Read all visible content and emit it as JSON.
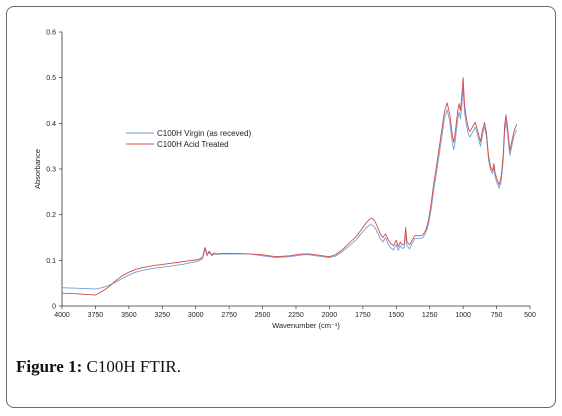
{
  "caption": {
    "label": "Figure 1:",
    "text": "C100H FTIR."
  },
  "colors": {
    "virgin": "#6fa0d8",
    "acid": "#d64b4b",
    "axis": "#333333"
  },
  "chart_data": {
    "type": "line",
    "xlabel": "Wavenumber",
    "xlabel_unit": "(cm⁻¹)",
    "ylabel": "Absorbance",
    "xlim": [
      4000,
      500
    ],
    "ylim": [
      0,
      0.6
    ],
    "x_ticks": [
      "4000",
      "3750",
      "3500",
      "3250",
      "3000",
      "2750",
      "2500",
      "2250",
      "2000",
      "1750",
      "1500",
      "1250",
      "1000",
      "750",
      "500"
    ],
    "y_ticks": [
      "0",
      "0.1",
      "0.2",
      "0.3",
      "0.4",
      "0.5",
      "0.6"
    ],
    "legend_position": "upper-left",
    "series": [
      {
        "name": "C100H Virgin (as receved)",
        "color": "#6fa0d8",
        "points": [
          [
            4000,
            0.04
          ],
          [
            3900,
            0.039
          ],
          [
            3800,
            0.038
          ],
          [
            3750,
            0.037
          ],
          [
            3700,
            0.04
          ],
          [
            3650,
            0.045
          ],
          [
            3600,
            0.052
          ],
          [
            3550,
            0.06
          ],
          [
            3500,
            0.068
          ],
          [
            3450,
            0.074
          ],
          [
            3400,
            0.078
          ],
          [
            3350,
            0.081
          ],
          [
            3300,
            0.083
          ],
          [
            3250,
            0.085
          ],
          [
            3200,
            0.087
          ],
          [
            3150,
            0.089
          ],
          [
            3100,
            0.091
          ],
          [
            3050,
            0.094
          ],
          [
            3000,
            0.097
          ],
          [
            2980,
            0.099
          ],
          [
            2950,
            0.103
          ],
          [
            2930,
            0.125
          ],
          [
            2915,
            0.11
          ],
          [
            2900,
            0.118
          ],
          [
            2880,
            0.11
          ],
          [
            2860,
            0.115
          ],
          [
            2850,
            0.113
          ],
          [
            2800,
            0.114
          ],
          [
            2700,
            0.114
          ],
          [
            2600,
            0.114
          ],
          [
            2500,
            0.11
          ],
          [
            2400,
            0.106
          ],
          [
            2300,
            0.108
          ],
          [
            2250,
            0.11
          ],
          [
            2200,
            0.112
          ],
          [
            2150,
            0.112
          ],
          [
            2100,
            0.11
          ],
          [
            2050,
            0.108
          ],
          [
            2000,
            0.106
          ],
          [
            1950,
            0.11
          ],
          [
            1900,
            0.12
          ],
          [
            1850,
            0.132
          ],
          [
            1800,
            0.145
          ],
          [
            1750,
            0.163
          ],
          [
            1720,
            0.172
          ],
          [
            1700,
            0.178
          ],
          [
            1680,
            0.177
          ],
          [
            1660,
            0.172
          ],
          [
            1640,
            0.16
          ],
          [
            1620,
            0.148
          ],
          [
            1600,
            0.14
          ],
          [
            1580,
            0.15
          ],
          [
            1560,
            0.135
          ],
          [
            1540,
            0.127
          ],
          [
            1520,
            0.123
          ],
          [
            1500,
            0.135
          ],
          [
            1485,
            0.122
          ],
          [
            1470,
            0.132
          ],
          [
            1455,
            0.126
          ],
          [
            1440,
            0.128
          ],
          [
            1430,
            0.16
          ],
          [
            1420,
            0.132
          ],
          [
            1400,
            0.125
          ],
          [
            1380,
            0.138
          ],
          [
            1360,
            0.148
          ],
          [
            1340,
            0.148
          ],
          [
            1320,
            0.148
          ],
          [
            1300,
            0.15
          ],
          [
            1280,
            0.16
          ],
          [
            1260,
            0.178
          ],
          [
            1240,
            0.21
          ],
          [
            1220,
            0.255
          ],
          [
            1200,
            0.29
          ],
          [
            1180,
            0.33
          ],
          [
            1160,
            0.37
          ],
          [
            1140,
            0.41
          ],
          [
            1120,
            0.43
          ],
          [
            1100,
            0.405
          ],
          [
            1080,
            0.355
          ],
          [
            1070,
            0.342
          ],
          [
            1060,
            0.36
          ],
          [
            1040,
            0.41
          ],
          [
            1030,
            0.425
          ],
          [
            1020,
            0.41
          ],
          [
            1010,
            0.44
          ],
          [
            1000,
            0.478
          ],
          [
            990,
            0.425
          ],
          [
            975,
            0.395
          ],
          [
            960,
            0.375
          ],
          [
            950,
            0.37
          ],
          [
            930,
            0.38
          ],
          [
            910,
            0.392
          ],
          [
            895,
            0.378
          ],
          [
            880,
            0.36
          ],
          [
            870,
            0.35
          ],
          [
            855,
            0.375
          ],
          [
            840,
            0.393
          ],
          [
            825,
            0.37
          ],
          [
            810,
            0.32
          ],
          [
            795,
            0.298
          ],
          [
            780,
            0.29
          ],
          [
            770,
            0.305
          ],
          [
            760,
            0.282
          ],
          [
            745,
            0.268
          ],
          [
            730,
            0.258
          ],
          [
            715,
            0.275
          ],
          [
            700,
            0.32
          ],
          [
            690,
            0.38
          ],
          [
            680,
            0.405
          ],
          [
            670,
            0.385
          ],
          [
            660,
            0.355
          ],
          [
            650,
            0.33
          ],
          [
            640,
            0.345
          ],
          [
            620,
            0.372
          ],
          [
            600,
            0.385
          ]
        ]
      },
      {
        "name": "C100H Acid Treated",
        "color": "#d64b4b",
        "points": [
          [
            4000,
            0.028
          ],
          [
            3900,
            0.027
          ],
          [
            3800,
            0.025
          ],
          [
            3750,
            0.024
          ],
          [
            3700,
            0.032
          ],
          [
            3650,
            0.042
          ],
          [
            3600,
            0.055
          ],
          [
            3550,
            0.066
          ],
          [
            3500,
            0.074
          ],
          [
            3450,
            0.08
          ],
          [
            3400,
            0.084
          ],
          [
            3350,
            0.087
          ],
          [
            3300,
            0.089
          ],
          [
            3250,
            0.091
          ],
          [
            3200,
            0.093
          ],
          [
            3150,
            0.095
          ],
          [
            3100,
            0.097
          ],
          [
            3050,
            0.099
          ],
          [
            3000,
            0.101
          ],
          [
            2980,
            0.102
          ],
          [
            2950,
            0.106
          ],
          [
            2930,
            0.128
          ],
          [
            2915,
            0.112
          ],
          [
            2900,
            0.12
          ],
          [
            2880,
            0.112
          ],
          [
            2860,
            0.116
          ],
          [
            2850,
            0.114
          ],
          [
            2800,
            0.115
          ],
          [
            2700,
            0.115
          ],
          [
            2600,
            0.114
          ],
          [
            2500,
            0.112
          ],
          [
            2400,
            0.108
          ],
          [
            2300,
            0.11
          ],
          [
            2250,
            0.112
          ],
          [
            2200,
            0.114
          ],
          [
            2150,
            0.114
          ],
          [
            2100,
            0.112
          ],
          [
            2050,
            0.11
          ],
          [
            2000,
            0.108
          ],
          [
            1950,
            0.113
          ],
          [
            1900,
            0.124
          ],
          [
            1850,
            0.138
          ],
          [
            1800,
            0.152
          ],
          [
            1750,
            0.172
          ],
          [
            1720,
            0.184
          ],
          [
            1700,
            0.19
          ],
          [
            1680,
            0.192
          ],
          [
            1660,
            0.186
          ],
          [
            1640,
            0.172
          ],
          [
            1620,
            0.158
          ],
          [
            1600,
            0.15
          ],
          [
            1580,
            0.158
          ],
          [
            1560,
            0.145
          ],
          [
            1540,
            0.136
          ],
          [
            1520,
            0.132
          ],
          [
            1500,
            0.144
          ],
          [
            1485,
            0.13
          ],
          [
            1470,
            0.14
          ],
          [
            1455,
            0.134
          ],
          [
            1440,
            0.136
          ],
          [
            1430,
            0.172
          ],
          [
            1420,
            0.14
          ],
          [
            1400,
            0.134
          ],
          [
            1380,
            0.145
          ],
          [
            1360,
            0.154
          ],
          [
            1340,
            0.154
          ],
          [
            1320,
            0.154
          ],
          [
            1300,
            0.156
          ],
          [
            1280,
            0.166
          ],
          [
            1260,
            0.186
          ],
          [
            1240,
            0.222
          ],
          [
            1220,
            0.268
          ],
          [
            1200,
            0.305
          ],
          [
            1180,
            0.345
          ],
          [
            1160,
            0.385
          ],
          [
            1140,
            0.425
          ],
          [
            1120,
            0.445
          ],
          [
            1100,
            0.42
          ],
          [
            1080,
            0.372
          ],
          [
            1070,
            0.358
          ],
          [
            1060,
            0.378
          ],
          [
            1040,
            0.428
          ],
          [
            1030,
            0.443
          ],
          [
            1020,
            0.428
          ],
          [
            1010,
            0.46
          ],
          [
            1000,
            0.5
          ],
          [
            990,
            0.442
          ],
          [
            975,
            0.41
          ],
          [
            960,
            0.388
          ],
          [
            950,
            0.382
          ],
          [
            930,
            0.392
          ],
          [
            910,
            0.402
          ],
          [
            895,
            0.388
          ],
          [
            880,
            0.37
          ],
          [
            870,
            0.36
          ],
          [
            855,
            0.386
          ],
          [
            840,
            0.402
          ],
          [
            825,
            0.378
          ],
          [
            810,
            0.328
          ],
          [
            795,
            0.305
          ],
          [
            780,
            0.296
          ],
          [
            770,
            0.312
          ],
          [
            760,
            0.29
          ],
          [
            745,
            0.276
          ],
          [
            730,
            0.266
          ],
          [
            715,
            0.284
          ],
          [
            700,
            0.332
          ],
          [
            690,
            0.395
          ],
          [
            680,
            0.418
          ],
          [
            670,
            0.398
          ],
          [
            660,
            0.366
          ],
          [
            650,
            0.34
          ],
          [
            640,
            0.355
          ],
          [
            620,
            0.382
          ],
          [
            600,
            0.398
          ]
        ]
      }
    ]
  }
}
